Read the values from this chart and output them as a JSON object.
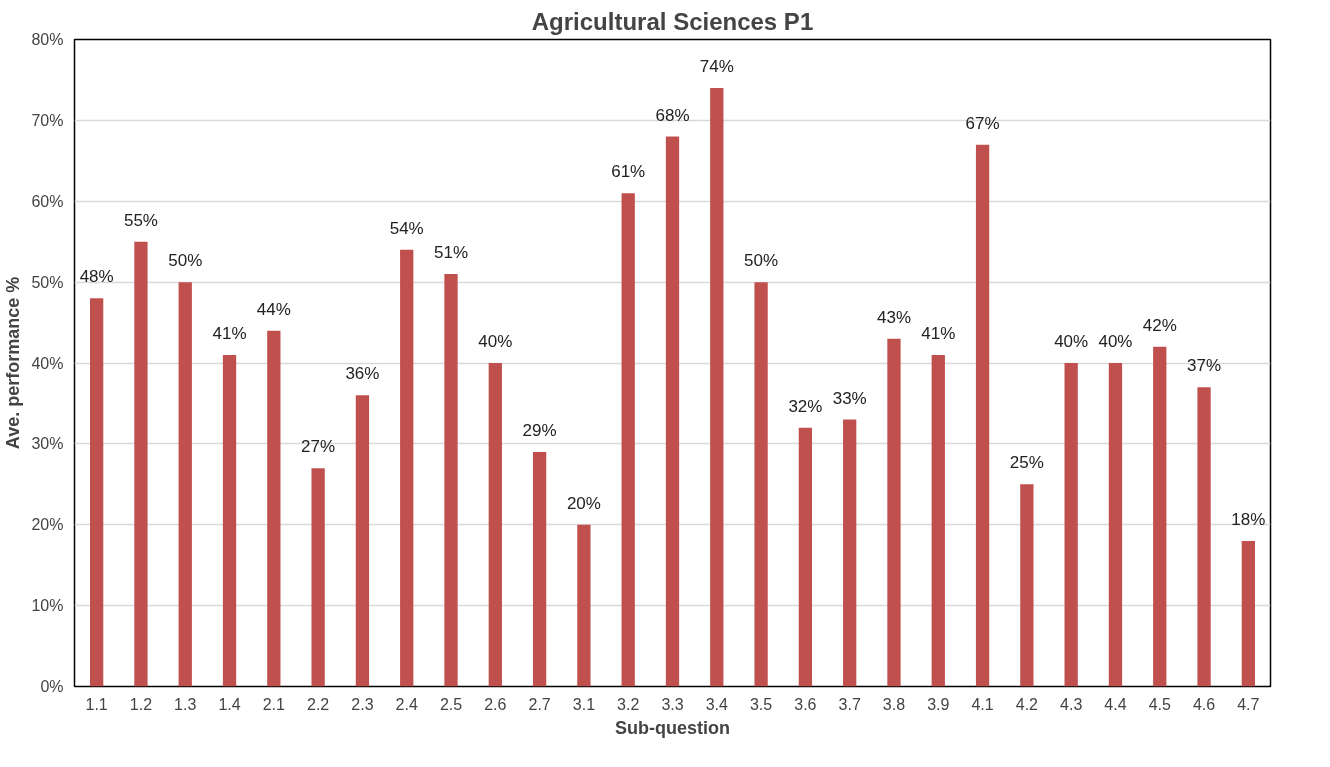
{
  "chart_data": {
    "type": "bar",
    "title": "Agricultural Sciences P1",
    "xlabel": "Sub-question",
    "ylabel": "Ave. performance %",
    "categories": [
      "1.1",
      "1.2",
      "1.3",
      "1.4",
      "2.1",
      "2.2",
      "2.3",
      "2.4",
      "2.5",
      "2.6",
      "2.7",
      "3.1",
      "3.2",
      "3.3",
      "3.4",
      "3.5",
      "3.6",
      "3.7",
      "3.8",
      "3.9",
      "4.1",
      "4.2",
      "4.3",
      "4.4",
      "4.5",
      "4.6",
      "4.7"
    ],
    "values": [
      48,
      55,
      50,
      41,
      44,
      27,
      36,
      54,
      51,
      40,
      29,
      20,
      61,
      68,
      74,
      50,
      32,
      33,
      43,
      41,
      67,
      25,
      40,
      40,
      42,
      37,
      18
    ],
    "value_labels": [
      "48%",
      "55%",
      "50%",
      "41%",
      "44%",
      "27%",
      "36%",
      "54%",
      "51%",
      "40%",
      "29%",
      "20%",
      "61%",
      "68%",
      "74%",
      "50%",
      "32%",
      "33%",
      "43%",
      "41%",
      "67%",
      "25%",
      "40%",
      "40%",
      "42%",
      "37%",
      "18%"
    ],
    "color": "#c0504d",
    "ylim": [
      0,
      80
    ],
    "yticks": [
      {
        "value": 0,
        "label": "0%"
      },
      {
        "value": 10,
        "label": "10%"
      },
      {
        "value": 20,
        "label": "20%"
      },
      {
        "value": 30,
        "label": "30%"
      },
      {
        "value": 40,
        "label": "40%"
      },
      {
        "value": 50,
        "label": "50%"
      },
      {
        "value": 60,
        "label": "60%"
      },
      {
        "value": 70,
        "label": "70%"
      },
      {
        "value": 80,
        "label": "80%"
      }
    ],
    "grid": "y"
  }
}
